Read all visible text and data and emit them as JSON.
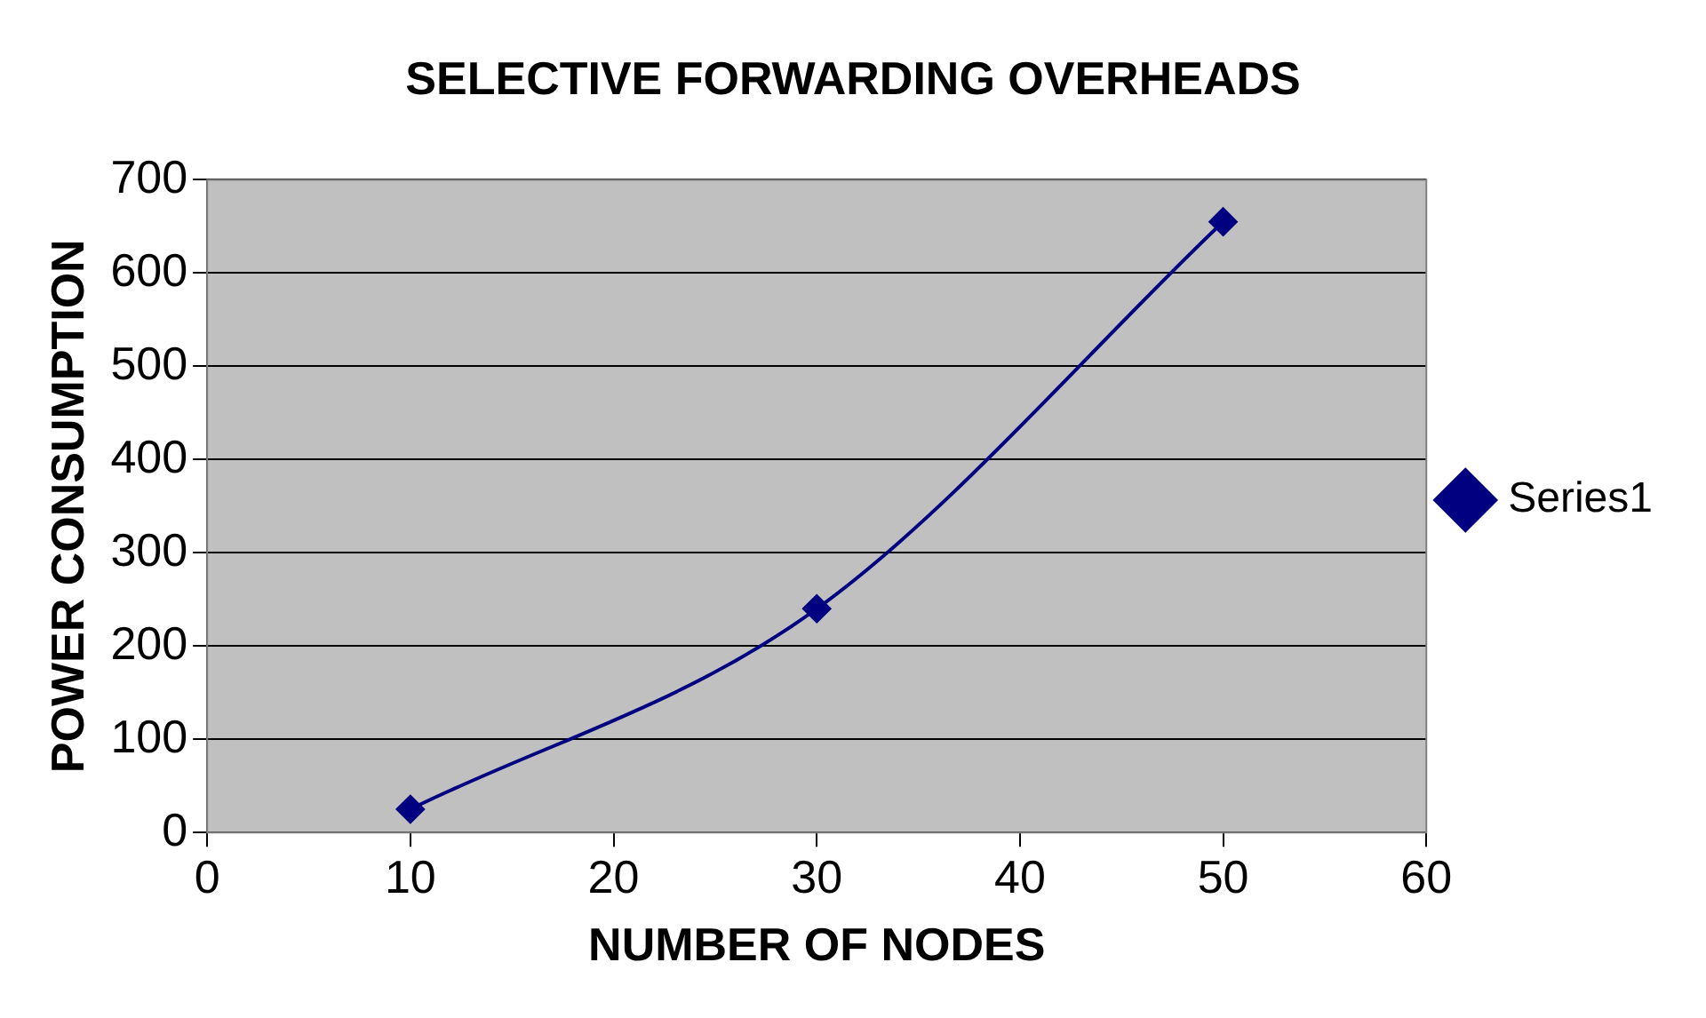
{
  "chart_data": {
    "type": "line",
    "title": "SELECTIVE FORWARDING OVERHEADS",
    "xlabel": "NUMBER OF NODES",
    "ylabel": "POWER CONSUMPTION",
    "x": [
      10,
      30,
      50
    ],
    "series": [
      {
        "name": "Series1",
        "color": "#000080",
        "values": [
          25,
          240,
          655
        ]
      }
    ],
    "xlim": [
      0,
      60
    ],
    "xticks": [
      0,
      10,
      20,
      30,
      40,
      50,
      60
    ],
    "ylim": [
      0,
      700
    ],
    "yticks": [
      0,
      100,
      200,
      300,
      400,
      500,
      600,
      700
    ],
    "grid": "y",
    "legend": "right",
    "marker": "diamond",
    "line_style": "solid"
  }
}
